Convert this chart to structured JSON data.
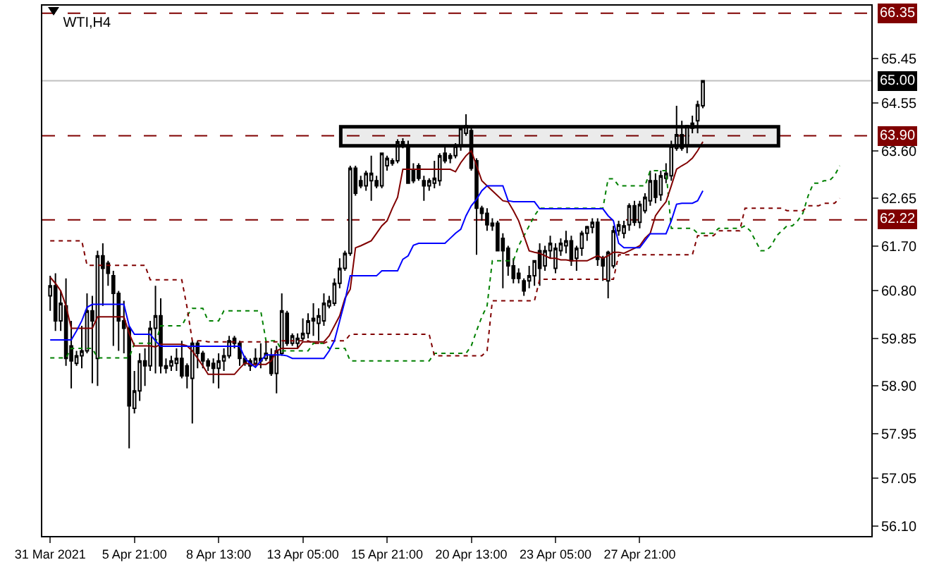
{
  "chart_data": {
    "type": "candlestick",
    "title": "WTI,H4",
    "categories": [
      "31 Mar 2021",
      null,
      null,
      null,
      null,
      null,
      null,
      null,
      null,
      null,
      null,
      null,
      null,
      null,
      null,
      null,
      "5 Apr 21:00",
      null,
      null,
      null,
      null,
      null,
      null,
      null,
      null,
      null,
      null,
      null,
      null,
      null,
      null,
      null,
      "8 Apr 13:00",
      null,
      null,
      null,
      null,
      null,
      null,
      null,
      null,
      null,
      null,
      null,
      null,
      null,
      null,
      null,
      "13 Apr 05:00",
      null,
      null,
      null,
      null,
      null,
      null,
      null,
      null,
      null,
      null,
      null,
      null,
      null,
      null,
      null,
      "15 Apr 21:00",
      null,
      null,
      null,
      null,
      null,
      null,
      null,
      null,
      null,
      null,
      null,
      null,
      null,
      null,
      null,
      "20 Apr 13:00",
      null,
      null,
      null,
      null,
      null,
      null,
      null,
      null,
      null,
      null,
      null,
      null,
      null,
      null,
      null,
      "23 Apr 05:00",
      null,
      null,
      null,
      null,
      null,
      null,
      null,
      null,
      null,
      null,
      null,
      null,
      null,
      null,
      null,
      "27 Apr 21:00",
      null,
      null,
      null,
      null,
      null,
      null,
      null,
      null,
      null,
      null,
      null,
      null,
      null,
      null,
      null,
      null,
      null,
      null,
      null,
      null,
      null,
      null,
      null,
      null,
      null,
      null,
      null,
      null,
      null,
      null,
      null,
      null,
      null,
      null,
      null,
      null,
      null,
      null
    ],
    "ylim": [
      55.9,
      66.5
    ],
    "yticks": [
      {
        "value": 56.1,
        "label": "56.10"
      },
      57.05,
      57.95,
      {
        "value": 58.9,
        "label": "58.90"
      },
      59.85,
      {
        "value": 60.8,
        "label": "60.80"
      },
      {
        "value": 61.7,
        "label": "61.70"
      },
      62.65,
      {
        "value": 63.6,
        "label": "63.60"
      },
      64.55,
      65.45
    ],
    "grid": false,
    "ref_lines": [
      {
        "axis": "y",
        "value": 66.35,
        "label": "66.35",
        "color": "#800000",
        "line_style": "dashed"
      },
      {
        "axis": "y",
        "value": 65.0,
        "label": "65.00",
        "color": "#c0c0c0",
        "line_style": "solid"
      },
      {
        "axis": "y",
        "value": 63.9,
        "label": "63.90",
        "color": "#800000",
        "line_style": "dashed"
      },
      {
        "axis": "y",
        "value": 62.22,
        "label": "62.22",
        "color": "#800000",
        "line_style": "dashed"
      }
    ],
    "bands": [
      {
        "axis": "y",
        "from": 63.7,
        "to": 64.08,
        "color": "#000000"
      }
    ],
    "series": [
      {
        "type": "line",
        "color": "#008000",
        "line_style": "dotted",
        "values": [
          59.46,
          59.46,
          59.46,
          59.46,
          59.65,
          59.65,
          59.65,
          59.65,
          59.65,
          59.46,
          59.46,
          59.46,
          59.46,
          59.46,
          59.46,
          59.46,
          59.75,
          59.75,
          59.75,
          59.75,
          59.75,
          60.1,
          60.1,
          60.1,
          60.1,
          60.1,
          60.3,
          60.45,
          60.45,
          60.45,
          60.2,
          60.2,
          60.2,
          60.4,
          60.4,
          60.4,
          60.4,
          60.4,
          60.4,
          60.4,
          60.4,
          59.8,
          59.8,
          59.8,
          59.6,
          59.6,
          59.6,
          59.6,
          59.6,
          59.6,
          59.75,
          59.75,
          59.75,
          59.65,
          59.65,
          59.65,
          59.65,
          59.4,
          59.4,
          59.4,
          59.4,
          59.4,
          59.4,
          59.4,
          59.4,
          59.4,
          59.4,
          59.4,
          59.4,
          59.4,
          59.4,
          59.4,
          59.4,
          59.55,
          59.55,
          59.55,
          59.55,
          59.55,
          59.55,
          59.55,
          59.7,
          60.0,
          60.28,
          60.5,
          61.4,
          61.4,
          61.4,
          61.4,
          61.4,
          61.7,
          61.9,
          62.1,
          62.3,
          62.45,
          62.45,
          62.45,
          62.45,
          62.45,
          62.45,
          62.45,
          62.45,
          62.45,
          62.45,
          62.45,
          62.45,
          62.45,
          63.04,
          63.04,
          62.9,
          62.9,
          62.9,
          62.9,
          62.9,
          62.9,
          63.2,
          63.2,
          63.2,
          63.2,
          62.05,
          62.05,
          62.05,
          62.05,
          62.05,
          61.95,
          61.95,
          61.95,
          61.95,
          62.05,
          62.05,
          62.05,
          62.05,
          62.05,
          62.1,
          62.0,
          61.8,
          61.6,
          61.6,
          61.7,
          61.9,
          62.0,
          62.1,
          62.1,
          62.2,
          62.35,
          62.7,
          62.95,
          62.95,
          63.0,
          63.0,
          63.1,
          63.3
        ]
      },
      {
        "type": "line",
        "color": "#800000",
        "line_style": "dotted",
        "values": [
          61.8,
          61.8,
          61.8,
          61.8,
          61.8,
          61.8,
          61.8,
          61.31,
          61.31,
          61.31,
          61.31,
          61.31,
          61.31,
          61.31,
          61.31,
          61.31,
          61.31,
          61.31,
          61.31,
          61.02,
          61.02,
          61.02,
          61.02,
          61.02,
          61.02,
          61.02,
          60.47,
          59.8,
          59.8,
          59.8,
          59.78,
          59.78,
          59.78,
          59.78,
          59.78,
          59.78,
          59.78,
          59.78,
          59.78,
          59.78,
          59.78,
          59.78,
          59.78,
          59.78,
          59.8,
          59.8,
          59.8,
          59.8,
          59.8,
          59.8,
          59.75,
          59.75,
          59.75,
          59.8,
          59.8,
          59.8,
          59.8,
          59.93,
          59.93,
          59.93,
          59.93,
          59.93,
          59.93,
          59.93,
          59.93,
          59.93,
          59.93,
          59.93,
          59.93,
          59.93,
          59.93,
          59.93,
          59.93,
          59.5,
          59.5,
          59.5,
          59.5,
          59.5,
          59.5,
          59.5,
          59.5,
          59.5,
          59.5,
          59.6,
          60.6,
          60.6,
          60.6,
          60.6,
          60.6,
          60.6,
          60.6,
          60.6,
          60.6,
          61.03,
          61.03,
          61.03,
          61.03,
          61.03,
          61.03,
          61.03,
          61.03,
          61.03,
          61.03,
          61.03,
          61.03,
          61.03,
          61.03,
          61.03,
          61.52,
          61.52,
          61.52,
          61.52,
          61.52,
          61.52,
          61.52,
          61.52,
          61.52,
          61.52,
          61.52,
          61.52,
          61.52,
          61.52,
          61.52,
          61.9,
          61.9,
          61.9,
          61.9,
          62.0,
          62.0,
          62.0,
          62.0,
          62.0,
          62.45,
          62.45,
          62.45,
          62.45,
          62.45,
          62.45,
          62.45,
          62.45,
          62.4,
          62.4,
          62.4,
          62.4,
          62.5,
          62.5,
          62.5,
          62.55,
          62.55,
          62.55,
          62.65
        ]
      },
      {
        "type": "line",
        "color": "#800000",
        "values": [
          61.07,
          60.95,
          60.8,
          60.5,
          60.05,
          60.05,
          60.05,
          60.05,
          60.05,
          60.28,
          60.28,
          60.28,
          60.28,
          60.28,
          60.28,
          59.95,
          59.7,
          59.7,
          59.7,
          59.7,
          59.68,
          59.73,
          59.73,
          59.73,
          59.73,
          59.73,
          59.7,
          59.6,
          59.45,
          59.3,
          59.13,
          59.13,
          59.13,
          59.13,
          59.13,
          59.13,
          59.25,
          59.36,
          59.33,
          59.33,
          59.33,
          59.33,
          59.4,
          59.6,
          59.65,
          59.65,
          59.65,
          59.65,
          59.78,
          59.78,
          59.78,
          59.78,
          59.78,
          59.9,
          60.1,
          60.3,
          60.65,
          60.83,
          61.66,
          61.7,
          61.75,
          61.8,
          61.95,
          62.1,
          62.2,
          62.45,
          62.67,
          63.23,
          63.23,
          63.23,
          63.23,
          63.23,
          63.23,
          63.23,
          63.23,
          63.23,
          63.23,
          63.18,
          63.36,
          63.5,
          63.6,
          63.3,
          63.0,
          62.9,
          62.8,
          62.7,
          62.6,
          62.58,
          62.4,
          62.2,
          61.9,
          61.6,
          61.57,
          61.55,
          61.5,
          61.45,
          61.45,
          61.42,
          61.42,
          61.4,
          61.4,
          61.4,
          61.4,
          61.45,
          61.5,
          61.45,
          61.5,
          61.57,
          61.57,
          61.55,
          61.6,
          61.65,
          61.7,
          61.85,
          61.95,
          62.3,
          62.45,
          62.58,
          62.9,
          63.23,
          63.3,
          63.36,
          63.45,
          63.6,
          63.78,
          null,
          null,
          null,
          null,
          null,
          null,
          null,
          null,
          null,
          null,
          null,
          null,
          null,
          null,
          null,
          null,
          null,
          null,
          null,
          null,
          null,
          null,
          null,
          null,
          null,
          null
        ]
      },
      {
        "type": "line",
        "color": "#0000ff",
        "values": [
          59.82,
          59.82,
          59.82,
          59.82,
          59.82,
          60.0,
          60.2,
          60.47,
          60.53,
          60.53,
          60.53,
          60.53,
          60.53,
          60.53,
          60.53,
          60.1,
          59.93,
          59.93,
          59.93,
          59.93,
          59.8,
          59.69,
          59.69,
          59.69,
          59.69,
          59.69,
          59.69,
          59.69,
          59.69,
          59.69,
          59.69,
          59.69,
          59.69,
          59.69,
          59.69,
          59.69,
          59.69,
          59.45,
          59.35,
          59.27,
          59.4,
          59.52,
          59.52,
          59.52,
          59.52,
          59.5,
          59.45,
          59.45,
          59.45,
          59.45,
          59.45,
          59.45,
          59.45,
          59.6,
          59.8,
          60.2,
          60.6,
          61.1,
          61.1,
          61.1,
          61.1,
          61.1,
          61.1,
          61.2,
          61.2,
          61.2,
          61.2,
          61.43,
          61.5,
          61.71,
          61.75,
          61.75,
          61.75,
          61.75,
          61.75,
          61.75,
          61.85,
          61.95,
          62.03,
          62.3,
          62.5,
          62.63,
          62.8,
          62.9,
          62.9,
          62.9,
          62.9,
          62.6,
          62.58,
          62.58,
          62.58,
          62.58,
          62.58,
          62.44,
          62.44,
          62.44,
          62.44,
          62.44,
          62.44,
          62.44,
          62.44,
          62.44,
          62.44,
          62.44,
          62.44,
          62.44,
          62.3,
          62.2,
          61.75,
          61.66,
          61.66,
          61.66,
          61.66,
          61.8,
          61.94,
          61.94,
          61.94,
          61.94,
          62.2,
          62.53,
          62.55,
          62.55,
          62.55,
          62.6,
          62.8,
          null,
          null,
          null,
          null,
          null,
          null,
          null,
          null,
          null,
          null,
          null,
          null,
          null,
          null,
          null,
          null,
          null,
          null,
          null,
          null,
          null,
          null,
          null,
          null,
          null,
          null
        ]
      },
      {
        "type": "candlestick",
        "color": "#000000",
        "ohlc": [
          [
            60.7,
            61.1,
            60.4,
            60.9
          ],
          [
            60.9,
            61.15,
            60.0,
            60.2
          ],
          [
            60.2,
            60.8,
            60.0,
            60.55
          ],
          [
            60.5,
            61.05,
            59.3,
            59.45
          ],
          [
            59.7,
            60.2,
            58.85,
            59.4
          ],
          [
            59.35,
            59.6,
            59.3,
            59.5
          ],
          [
            59.5,
            60.1,
            59.25,
            59.6
          ],
          [
            59.6,
            60.75,
            59.55,
            60.4
          ],
          [
            60.4,
            60.7,
            58.95,
            60.2
          ],
          [
            59.45,
            61.6,
            58.9,
            61.5
          ],
          [
            61.5,
            61.75,
            60.5,
            61.25
          ],
          [
            61.35,
            61.4,
            60.9,
            61.15
          ],
          [
            61.1,
            61.2,
            59.7,
            60.75
          ],
          [
            60.75,
            60.8,
            59.6,
            60.2
          ],
          [
            60.2,
            60.6,
            59.55,
            60.05
          ],
          [
            60.05,
            60.1,
            57.65,
            58.5
          ],
          [
            58.45,
            59.2,
            58.35,
            58.8
          ],
          [
            58.8,
            59.55,
            58.6,
            59.4
          ],
          [
            59.4,
            59.65,
            58.9,
            59.3
          ],
          [
            59.3,
            60.2,
            59.2,
            60.05
          ],
          [
            60.05,
            60.9,
            59.15,
            60.3
          ],
          [
            60.3,
            60.65,
            59.15,
            59.3
          ],
          [
            59.3,
            59.45,
            59.15,
            59.25
          ],
          [
            59.3,
            59.5,
            59.2,
            59.4
          ],
          [
            59.35,
            59.65,
            59.2,
            59.45
          ],
          [
            59.45,
            59.8,
            59.05,
            59.1
          ],
          [
            59.3,
            59.35,
            58.85,
            59.1
          ],
          [
            59.05,
            59.8,
            58.15,
            59.75
          ],
          [
            59.75,
            59.8,
            59.25,
            59.55
          ],
          [
            59.55,
            59.6,
            59.25,
            59.4
          ],
          [
            59.4,
            59.45,
            59.2,
            59.3
          ],
          [
            59.35,
            59.45,
            58.95,
            59.25
          ],
          [
            59.25,
            59.55,
            58.85,
            59.4
          ],
          [
            59.4,
            59.65,
            59.2,
            59.5
          ],
          [
            59.5,
            59.9,
            59.45,
            59.8
          ],
          [
            59.85,
            59.9,
            59.65,
            59.75
          ],
          [
            59.75,
            59.8,
            59.3,
            59.45
          ],
          [
            59.45,
            59.5,
            59.3,
            59.35
          ],
          [
            59.3,
            59.45,
            59.2,
            59.4
          ],
          [
            59.35,
            59.65,
            59.3,
            59.45
          ],
          [
            59.4,
            59.75,
            59.25,
            59.45
          ],
          [
            59.45,
            59.8,
            59.4,
            59.55
          ],
          [
            59.5,
            59.65,
            59.1,
            59.15
          ],
          [
            59.15,
            59.7,
            58.75,
            59.6
          ],
          [
            59.55,
            60.75,
            59.5,
            60.4
          ],
          [
            60.35,
            60.4,
            59.7,
            59.75
          ],
          [
            59.75,
            59.95,
            59.7,
            59.9
          ],
          [
            59.75,
            59.95,
            59.65,
            59.85
          ],
          [
            59.85,
            60.25,
            59.8,
            59.95
          ],
          [
            59.95,
            60.35,
            59.85,
            60.2
          ],
          [
            60.25,
            60.55,
            59.9,
            60.2
          ],
          [
            60.15,
            60.45,
            59.8,
            60.3
          ],
          [
            60.2,
            60.75,
            60.1,
            60.55
          ],
          [
            60.5,
            60.7,
            60.45,
            60.6
          ],
          [
            60.55,
            61.05,
            60.5,
            60.95
          ],
          [
            60.95,
            61.45,
            60.85,
            61.25
          ],
          [
            61.25,
            61.6,
            61.2,
            61.55
          ],
          [
            61.55,
            63.3,
            61.5,
            63.25
          ],
          [
            63.25,
            63.3,
            62.7,
            62.75
          ],
          [
            63.0,
            63.1,
            62.85,
            62.9
          ],
          [
            62.9,
            63.2,
            62.8,
            63.15
          ],
          [
            63.0,
            63.5,
            62.6,
            63.15
          ],
          [
            63.0,
            63.1,
            62.85,
            62.9
          ],
          [
            62.9,
            63.55,
            62.85,
            63.55
          ],
          [
            63.3,
            63.5,
            63.2,
            63.45
          ],
          [
            63.35,
            63.45,
            63.3,
            63.4
          ],
          [
            63.4,
            63.83,
            63.35,
            63.78
          ],
          [
            63.78,
            63.85,
            63.65,
            63.7
          ],
          [
            63.7,
            63.8,
            62.95,
            62.95
          ],
          [
            63.2,
            63.35,
            62.95,
            63.0
          ],
          [
            63.3,
            63.35,
            63.0,
            63.05
          ],
          [
            63.0,
            63.1,
            62.6,
            62.9
          ],
          [
            62.9,
            63.05,
            62.8,
            63.0
          ],
          [
            62.95,
            63.4,
            62.85,
            63.05
          ],
          [
            63.0,
            63.55,
            62.9,
            63.5
          ],
          [
            63.55,
            63.7,
            63.35,
            63.4
          ],
          [
            63.45,
            63.55,
            63.35,
            63.5
          ],
          [
            63.5,
            63.75,
            63.45,
            63.7
          ],
          [
            63.7,
            64.05,
            63.6,
            64.05
          ],
          [
            63.95,
            64.33,
            63.9,
            64.1
          ],
          [
            64.0,
            64.1,
            63.2,
            63.25
          ],
          [
            63.4,
            63.45,
            61.52,
            62.45
          ],
          [
            62.45,
            62.5,
            62.2,
            62.35
          ],
          [
            62.35,
            62.45,
            62.0,
            62.12
          ],
          [
            62.1,
            62.25,
            62.0,
            62.15
          ],
          [
            62.15,
            62.2,
            61.6,
            61.6
          ],
          [
            61.85,
            61.95,
            60.85,
            61.6
          ],
          [
            61.65,
            61.7,
            61.1,
            61.3
          ],
          [
            61.3,
            61.45,
            60.95,
            61.05
          ],
          [
            61.15,
            61.25,
            60.95,
            61.05
          ],
          [
            61.0,
            61.05,
            60.7,
            60.8
          ],
          [
            61.0,
            61.3,
            60.85,
            61.1
          ],
          [
            61.1,
            61.4,
            60.9,
            61.4
          ],
          [
            61.6,
            61.75,
            60.9,
            61.25
          ],
          [
            61.3,
            61.7,
            61.2,
            61.6
          ],
          [
            61.6,
            61.9,
            61.45,
            61.75
          ],
          [
            61.25,
            61.75,
            61.15,
            61.65
          ],
          [
            61.6,
            61.85,
            61.5,
            61.75
          ],
          [
            61.7,
            62.0,
            61.55,
            61.8
          ],
          [
            61.8,
            61.9,
            61.3,
            61.4
          ],
          [
            61.45,
            61.7,
            61.2,
            61.65
          ],
          [
            61.65,
            62.0,
            61.5,
            61.95
          ],
          [
            61.95,
            62.1,
            61.8,
            62.08
          ],
          [
            62.07,
            62.25,
            61.95,
            62.17
          ],
          [
            62.17,
            62.25,
            61.3,
            61.43
          ],
          [
            61.45,
            61.5,
            61.0,
            61.3
          ],
          [
            61.0,
            61.6,
            60.65,
            61.57
          ],
          [
            61.3,
            62.1,
            61.25,
            62.0
          ],
          [
            62.0,
            62.2,
            61.9,
            62.12
          ],
          [
            61.95,
            62.2,
            61.85,
            62.1
          ],
          [
            62.12,
            62.55,
            62.0,
            62.5
          ],
          [
            62.5,
            62.6,
            62.1,
            62.17
          ],
          [
            62.17,
            62.6,
            62.05,
            62.53
          ],
          [
            62.4,
            62.75,
            62.35,
            62.67
          ],
          [
            62.6,
            63.2,
            62.5,
            63.0
          ],
          [
            63.0,
            63.15,
            62.55,
            62.67
          ],
          [
            62.72,
            63.2,
            62.6,
            63.1
          ],
          [
            63.05,
            63.35,
            62.95,
            63.15
          ],
          [
            63.1,
            63.8,
            63.0,
            63.7
          ],
          [
            63.65,
            64.5,
            63.6,
            63.92
          ],
          [
            63.92,
            64.2,
            63.6,
            63.65
          ],
          [
            63.7,
            64.1,
            63.55,
            64.1
          ],
          [
            64.05,
            64.3,
            63.95,
            64.15
          ],
          [
            64.2,
            64.6,
            63.95,
            64.52
          ],
          [
            64.5,
            65.0,
            64.45,
            65.0
          ],
          null,
          null,
          null,
          null,
          null,
          null,
          null,
          null,
          null,
          null,
          null,
          null,
          null,
          null,
          null,
          null,
          null,
          null,
          null,
          null,
          null,
          null,
          null,
          null,
          null,
          null
        ]
      }
    ]
  }
}
